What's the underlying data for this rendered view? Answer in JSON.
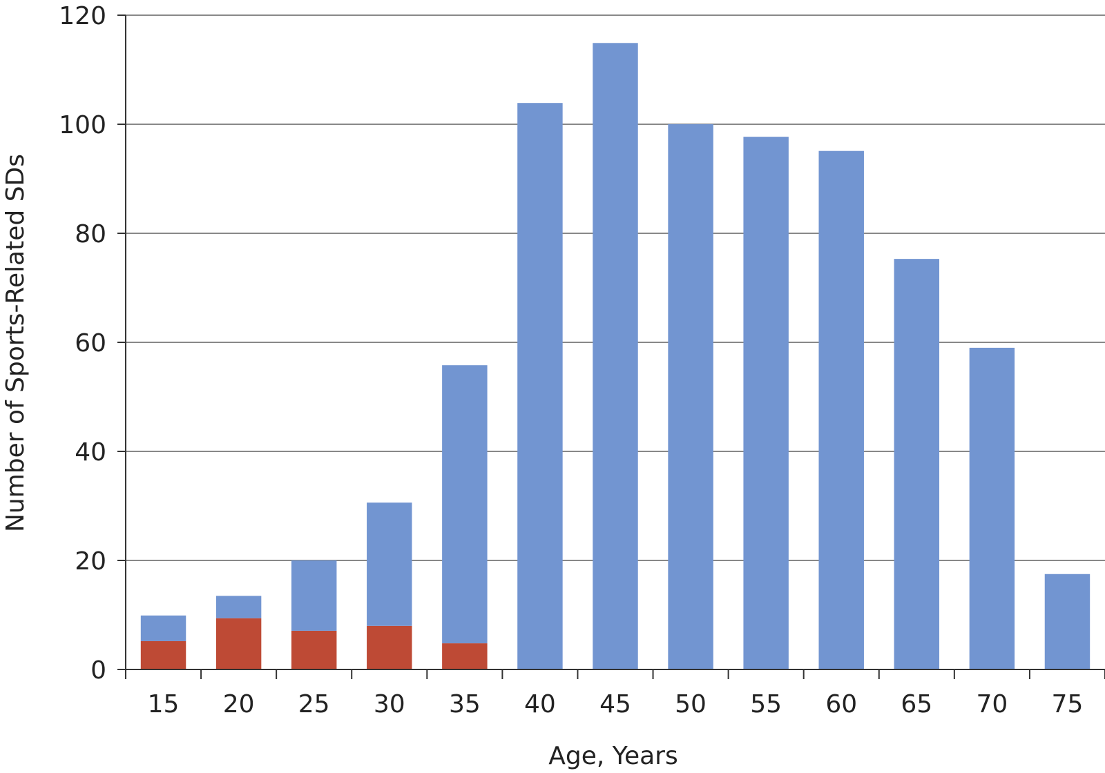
{
  "chart_data": {
    "type": "bar",
    "stacked": true,
    "xlabel": "Age, Years",
    "ylabel": "Number of Sports-Related SDs",
    "ylim": [
      0,
      120
    ],
    "yticks": [
      0,
      20,
      40,
      60,
      80,
      100,
      120
    ],
    "grid": true,
    "categories": [
      "15",
      "20",
      "25",
      "30",
      "35",
      "40",
      "45",
      "50",
      "55",
      "60",
      "65",
      "70",
      "75"
    ],
    "series": [
      {
        "color": "#be4a35",
        "values": [
          5.2,
          9.4,
          7.1,
          8.0,
          4.8,
          0,
          0,
          0,
          0,
          0,
          0,
          0,
          0
        ]
      },
      {
        "color": "#7295d1",
        "values": [
          4.7,
          4.1,
          12.9,
          22.6,
          51.0,
          103.9,
          114.9,
          100.0,
          97.7,
          95.1,
          75.3,
          59.0,
          17.5
        ]
      }
    ]
  },
  "colors": {
    "grid": "#888888",
    "axis": "#333333",
    "text": "#222222"
  }
}
